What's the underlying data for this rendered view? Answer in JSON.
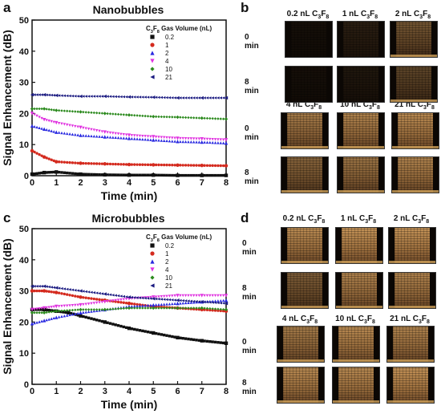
{
  "panels": {
    "a": {
      "letter": "a",
      "title": "Nanobubbles"
    },
    "b": {
      "letter": "b"
    },
    "c": {
      "letter": "c",
      "title": "Microbubbles"
    },
    "d": {
      "letter": "d"
    }
  },
  "chart_data": [
    {
      "type": "scatter",
      "panel": "a",
      "title": "Nanobubbles",
      "xlabel": "Time (min)",
      "ylabel": "Signal Enhancement (dB)",
      "xlim": [
        0,
        8
      ],
      "ylim": [
        0,
        50
      ],
      "xticks": [
        0,
        1,
        2,
        3,
        4,
        5,
        6,
        7,
        8
      ],
      "yticks": [
        0,
        10,
        20,
        30,
        40,
        50
      ],
      "legend_title": "C3F8 Gas Volume (nL)",
      "legend_position": "top-right",
      "series": [
        {
          "name": "0.2",
          "color": "#111111",
          "marker": "square",
          "x": [
            0,
            0.5,
            1,
            2,
            3,
            4,
            5,
            6,
            7,
            8
          ],
          "y": [
            0.5,
            1,
            1.2,
            0.5,
            0.3,
            0.2,
            0.2,
            0.1,
            0.1,
            0.1
          ]
        },
        {
          "name": "1",
          "color": "#d42a1e",
          "marker": "circle",
          "x": [
            0,
            0.5,
            1,
            2,
            3,
            4,
            5,
            6,
            7,
            8
          ],
          "y": [
            8,
            6,
            4.5,
            4,
            3.8,
            3.6,
            3.5,
            3.4,
            3.3,
            3.2
          ]
        },
        {
          "name": "2",
          "color": "#2828e0",
          "marker": "triangle-up",
          "x": [
            0,
            0.5,
            1,
            2,
            3,
            4,
            5,
            6,
            7,
            8
          ],
          "y": [
            16,
            15,
            14,
            13,
            12.5,
            12,
            11.5,
            11,
            10.8,
            10.5
          ]
        },
        {
          "name": "4",
          "color": "#e032e0",
          "marker": "triangle-down",
          "x": [
            0,
            0.5,
            1,
            2,
            3,
            4,
            5,
            6,
            7,
            8
          ],
          "y": [
            20,
            18,
            17,
            15.5,
            14,
            13,
            12.5,
            12,
            11.8,
            11.5
          ]
        },
        {
          "name": "10",
          "color": "#2c8a1e",
          "marker": "diamond",
          "x": [
            0,
            0.5,
            1,
            2,
            3,
            4,
            5,
            6,
            7,
            8
          ],
          "y": [
            21.5,
            21.5,
            21,
            20.5,
            20,
            19.5,
            19,
            18.8,
            18.5,
            18.2
          ]
        },
        {
          "name": "21",
          "color": "#1a1a80",
          "marker": "triangle-left",
          "x": [
            0,
            0.5,
            1,
            2,
            3,
            4,
            5,
            6,
            7,
            8
          ],
          "y": [
            26,
            26,
            25.8,
            25.5,
            25.5,
            25.3,
            25.2,
            25,
            25,
            25
          ]
        }
      ]
    },
    {
      "type": "scatter",
      "panel": "c",
      "title": "Microbubbles",
      "xlabel": "Time (min)",
      "ylabel": "Signal Enhancement (dB)",
      "xlim": [
        0,
        8
      ],
      "ylim": [
        0,
        50
      ],
      "xticks": [
        0,
        1,
        2,
        3,
        4,
        5,
        6,
        7,
        8
      ],
      "yticks": [
        0,
        10,
        20,
        30,
        40,
        50
      ],
      "legend_title": "C3F8 Gas Volume (nL)",
      "legend_position": "top-right",
      "series": [
        {
          "name": "0.2",
          "color": "#111111",
          "marker": "square",
          "x": [
            0,
            0.5,
            1,
            1.5,
            2,
            3,
            4,
            5,
            6,
            7,
            8
          ],
          "y": [
            24,
            24,
            23.5,
            23,
            22,
            20,
            18,
            16.5,
            15,
            14,
            13.2
          ]
        },
        {
          "name": "1",
          "color": "#d42a1e",
          "marker": "circle",
          "x": [
            0,
            0.5,
            1,
            2,
            3,
            4,
            5,
            6,
            7,
            8
          ],
          "y": [
            30,
            30,
            29.5,
            28,
            27,
            26,
            25,
            24.5,
            24,
            23.5
          ]
        },
        {
          "name": "2",
          "color": "#2828e0",
          "marker": "triangle-up",
          "x": [
            0,
            0.5,
            1,
            2,
            3,
            4,
            5,
            6,
            7,
            8
          ],
          "y": [
            19.5,
            20.5,
            21.5,
            23,
            24,
            25,
            25.5,
            26,
            26.5,
            27
          ]
        },
        {
          "name": "4",
          "color": "#e032e0",
          "marker": "triangle-down",
          "x": [
            0,
            0.5,
            1,
            2,
            3,
            4,
            5,
            6,
            7,
            8
          ],
          "y": [
            24,
            24.5,
            25,
            25.5,
            26.5,
            27.5,
            28,
            28.5,
            28.5,
            28.5
          ]
        },
        {
          "name": "10",
          "color": "#2c8a1e",
          "marker": "diamond",
          "x": [
            0,
            0.5,
            1,
            2,
            3,
            4,
            5,
            6,
            7,
            8
          ],
          "y": [
            23,
            23,
            23.5,
            24,
            24,
            24.5,
            24.5,
            24.5,
            24.5,
            24
          ]
        },
        {
          "name": "21",
          "color": "#1a1a80",
          "marker": "triangle-left",
          "x": [
            0,
            0.5,
            1,
            2,
            3,
            4,
            5,
            6,
            7,
            8
          ],
          "y": [
            31.5,
            31.5,
            31,
            30,
            29,
            28,
            27.5,
            27,
            26.5,
            26
          ]
        }
      ]
    }
  ],
  "ultrasound": {
    "b": {
      "top_columns": [
        "0.2 nL C3F8",
        "1 nL C3F8",
        "2 nL C3F8"
      ],
      "bottom_columns": [
        "4 nL C3F8",
        "10 nL C3F8",
        "21 nL C3F8"
      ],
      "row_labels": [
        "0 min",
        "8 min",
        "0 min",
        "8 min"
      ],
      "brightness": [
        [
          0.05,
          0.15,
          0.5
        ],
        [
          0.02,
          0.1,
          0.4
        ],
        [
          0.75,
          0.8,
          0.85
        ],
        [
          0.6,
          0.7,
          0.8
        ]
      ]
    },
    "d": {
      "top_columns": [
        "0.2 nL C3F8",
        "1 nL C3F8",
        "2 nL C3F8"
      ],
      "bottom_columns": [
        "4 nL C3F8",
        "10 nL C3F8",
        "21 nL C3F8"
      ],
      "row_labels": [
        "0 min",
        "8 min",
        "0 min",
        "8 min"
      ],
      "brightness": [
        [
          0.85,
          0.9,
          0.9
        ],
        [
          0.55,
          0.8,
          0.8
        ],
        [
          0.75,
          0.85,
          0.8
        ],
        [
          0.85,
          0.85,
          0.9
        ]
      ]
    }
  }
}
